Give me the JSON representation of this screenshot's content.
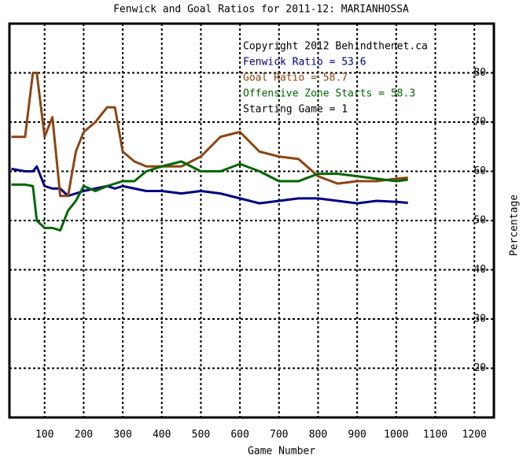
{
  "chart_data": {
    "type": "line",
    "title": "Fenwick and Goal Ratios for 2011-12: MARIANHOSSA",
    "x_label": "Game Number",
    "y_label": "Percentage",
    "x": [
      15,
      50,
      70,
      80,
      100,
      120,
      140,
      160,
      180,
      200,
      230,
      260,
      280,
      300,
      330,
      360,
      400,
      450,
      500,
      550,
      600,
      650,
      700,
      750,
      800,
      850,
      900,
      950,
      1000,
      1030
    ],
    "series": [
      {
        "name": "Fenwick Ratio = 53.6",
        "color": "#000080",
        "values": [
          60.5,
          60,
          60,
          61,
          57,
          56.5,
          56.5,
          55,
          55.5,
          56,
          56.5,
          57,
          56.5,
          57,
          56.5,
          56,
          56,
          55.5,
          56,
          55.5,
          54.5,
          53.5,
          54,
          54.5,
          54.5,
          54,
          53.5,
          54,
          53.8,
          53.6
        ]
      },
      {
        "name": "Goal Ratio = 58.7",
        "color": "#8b4513",
        "values": [
          67,
          67,
          80,
          80,
          67,
          71,
          55,
          55,
          64,
          68,
          70,
          73,
          73,
          64,
          62,
          61,
          61,
          61,
          63,
          67,
          68,
          64,
          63,
          62.5,
          59,
          57.5,
          58,
          58,
          58.5,
          58.7
        ]
      },
      {
        "name": "Offensive Zone Starts = 58.3",
        "color": "#006600",
        "values": [
          57.3,
          57.3,
          57,
          50,
          48.5,
          48.5,
          48,
          52,
          54,
          57,
          56,
          57,
          57.5,
          58,
          58,
          60,
          61,
          62,
          60,
          60,
          61.5,
          60,
          58,
          58,
          59.5,
          59.5,
          59,
          58.5,
          58,
          58.3
        ]
      }
    ],
    "annotations": [
      "Copyright 2012 Behindthenet.ca",
      "Starting Game = 1"
    ],
    "xlim": [
      10,
      1250
    ],
    "ylim": [
      10,
      90
    ],
    "xticks": [
      100,
      200,
      300,
      400,
      500,
      600,
      700,
      800,
      900,
      1000,
      1100,
      1200
    ],
    "yticks": [
      20,
      30,
      40,
      50,
      60,
      70,
      80
    ],
    "grid": true
  }
}
